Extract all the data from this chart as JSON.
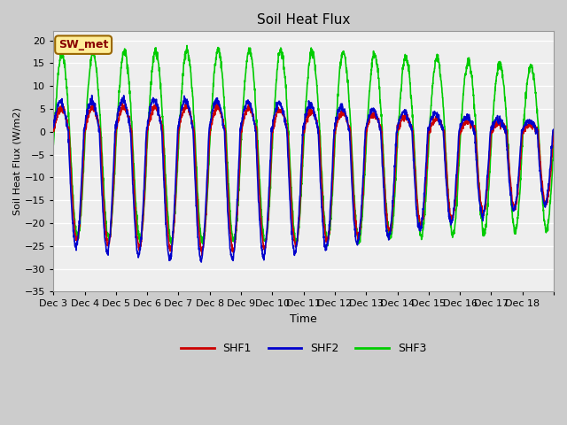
{
  "title": "Soil Heat Flux",
  "xlabel": "Time",
  "ylabel": "Soil Heat Flux (W/m2)",
  "ylim": [
    -35,
    22
  ],
  "yticks": [
    -35,
    -30,
    -25,
    -20,
    -15,
    -10,
    -5,
    0,
    5,
    10,
    15,
    20
  ],
  "fig_bg_color": "#cccccc",
  "plot_bg_color": "#eeeeee",
  "grid_color": "#ffffff",
  "line_colors": {
    "SHF1": "#cc0000",
    "SHF2": "#0000cc",
    "SHF3": "#00cc00"
  },
  "line_widths": {
    "SHF1": 1.2,
    "SHF2": 1.2,
    "SHF3": 1.2
  },
  "n_days": 16,
  "start_day": 3,
  "points_per_day": 144,
  "annotation_label": "SW_met",
  "annotation_color": "#880000",
  "annotation_bg": "#ffee99",
  "annotation_edge": "#996600"
}
